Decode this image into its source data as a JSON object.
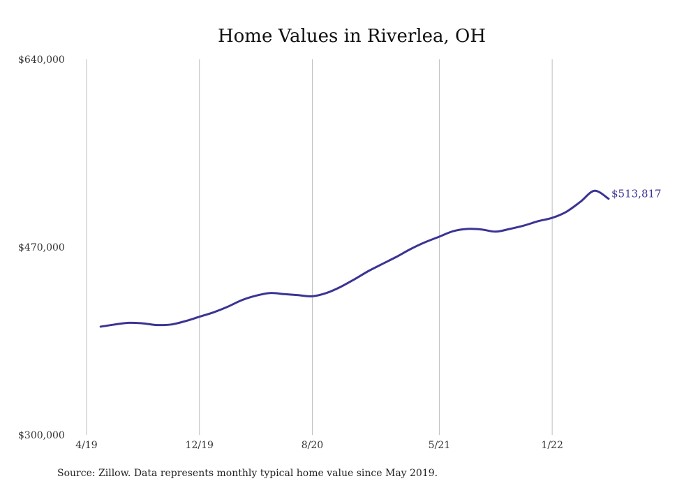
{
  "chart_data": {
    "type": "line",
    "title": "Home Values in Riverlea, OH",
    "xlabel": "",
    "ylabel": "",
    "ylim": [
      300000,
      640000
    ],
    "y_ticks": [
      "$640,000",
      "$470,000",
      "$300,000"
    ],
    "y_tick_values": [
      640000,
      470000,
      300000
    ],
    "x_tick_labels": [
      "4/19",
      "12/19",
      "8/20",
      "5/21",
      "1/22"
    ],
    "x_tick_dates": [
      "2019-04",
      "2019-12",
      "2020-08",
      "2021-05",
      "2022-01"
    ],
    "grid": "vertical",
    "line_color": "#3b3494",
    "series": [
      {
        "x": [
          "2019-05",
          "2019-06",
          "2019-07",
          "2019-08",
          "2019-09",
          "2019-10",
          "2019-11",
          "2019-12",
          "2020-01",
          "2020-02",
          "2020-03",
          "2020-04",
          "2020-05",
          "2020-06",
          "2020-07",
          "2020-08",
          "2020-09",
          "2020-10",
          "2020-11",
          "2020-12",
          "2021-01",
          "2021-02",
          "2021-03",
          "2021-04",
          "2021-05",
          "2021-06",
          "2021-07",
          "2021-08",
          "2021-09",
          "2021-10",
          "2021-11",
          "2021-12",
          "2022-01",
          "2022-02",
          "2022-03",
          "2022-04",
          "2022-05"
        ],
        "values": [
          398000,
          400000,
          401500,
          401000,
          399500,
          400000,
          403000,
          407000,
          411000,
          416000,
          422000,
          426000,
          428500,
          427500,
          426500,
          425500,
          428500,
          434000,
          441000,
          448500,
          455000,
          461500,
          468500,
          474500,
          479500,
          484500,
          486500,
          486000,
          484000,
          486500,
          489500,
          493500,
          496500,
          502000,
          511000,
          521000,
          513817
        ],
        "end_label": "$513,817"
      }
    ]
  },
  "source": "Source: Zillow. Data represents monthly typical home value since May 2019."
}
